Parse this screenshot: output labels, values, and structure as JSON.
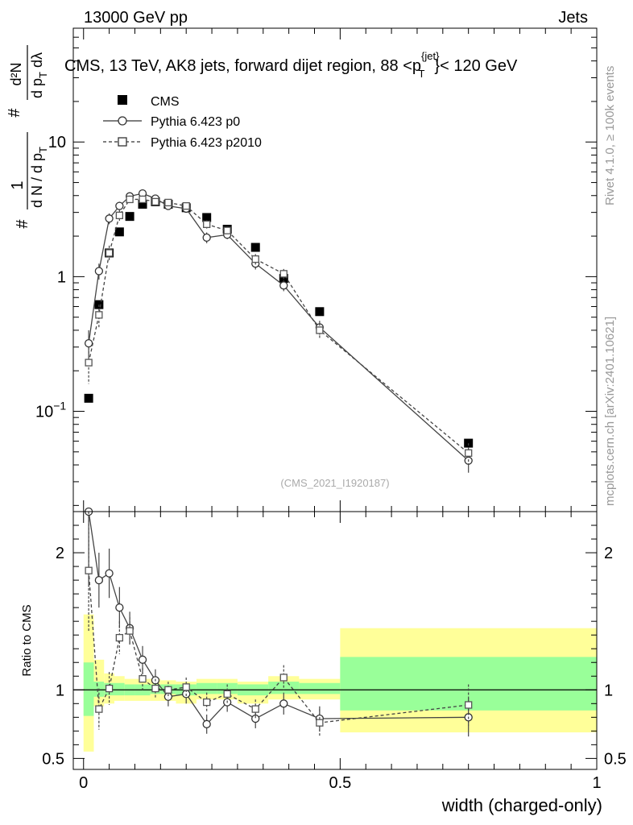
{
  "header": {
    "left": "13000 GeV pp",
    "right": "Jets"
  },
  "side_labels": {
    "rivet": "Rivet 4.1.0, ≥ 100k events",
    "mcplots": "mcplots.cern.ch [arXiv:2401.10621]"
  },
  "chart_data": [
    {
      "type": "scatter",
      "title": "CMS, 13 TeV, AK8 jets, forward dijet region, 88 <p",
      "title_sup": "{jet}",
      "title_sub": "T",
      "title_end": "}< 120 GeV",
      "analysis_id": "(CMS_2021_I1920187)",
      "yscale": "log",
      "ylim": [
        0.018,
        70
      ],
      "xlim": [
        -0.02,
        1.0
      ],
      "ylabel": {
        "frac_num": "1",
        "frac_den": "d N / d p",
        "den_sub": "T",
        "hash": "#",
        "frac2_num": "d²N",
        "frac2_den": "d p",
        "frac2_den_sub": "T",
        "frac2_den_tail": " dλ"
      },
      "yticks": [
        {
          "value": 0.1,
          "base": "10",
          "exp": "−1"
        },
        {
          "value": 1,
          "label": "1"
        },
        {
          "value": 10,
          "label": "10"
        }
      ],
      "legend_position": "top-left",
      "legend": [
        {
          "name": "CMS",
          "marker": "filled-square"
        },
        {
          "name": "Pythia 6.423 p0",
          "marker": "open-circle",
          "line": "solid"
        },
        {
          "name": "Pythia 6.423 p2010",
          "marker": "open-square",
          "line": "dashed"
        }
      ],
      "series": [
        {
          "name": "CMS",
          "x": [
            0.01,
            0.03,
            0.05,
            0.07,
            0.09,
            0.115,
            0.14,
            0.165,
            0.2,
            0.24,
            0.28,
            0.335,
            0.39,
            0.46,
            0.75
          ],
          "y": [
            0.125,
            0.62,
            1.5,
            2.15,
            2.8,
            3.45,
            3.6,
            3.45,
            3.25,
            2.75,
            2.25,
            1.65,
            0.97,
            0.55,
            0.058
          ]
        },
        {
          "name": "Pythia 6.423 p0",
          "x": [
            0.01,
            0.03,
            0.05,
            0.07,
            0.09,
            0.115,
            0.14,
            0.165,
            0.2,
            0.24,
            0.28,
            0.335,
            0.39,
            0.46,
            0.75
          ],
          "y": [
            0.32,
            1.1,
            2.7,
            3.35,
            3.95,
            4.15,
            3.8,
            3.35,
            3.2,
            1.95,
            2.05,
            1.25,
            0.86,
            0.42,
            0.043
          ],
          "err": [
            0.08,
            0.15,
            0.25,
            0.25,
            0.25,
            0.25,
            0.2,
            0.2,
            0.2,
            0.18,
            0.15,
            0.12,
            0.08,
            0.05,
            0.008
          ]
        },
        {
          "name": "Pythia 6.423 p2010",
          "x": [
            0.01,
            0.03,
            0.05,
            0.07,
            0.09,
            0.115,
            0.14,
            0.165,
            0.2,
            0.24,
            0.28,
            0.335,
            0.39,
            0.46,
            0.75
          ],
          "y": [
            0.23,
            0.52,
            1.5,
            2.85,
            3.75,
            3.75,
            3.6,
            3.55,
            3.35,
            2.45,
            2.2,
            1.35,
            1.05,
            0.4,
            0.049
          ],
          "err": [
            0.07,
            0.1,
            0.2,
            0.25,
            0.25,
            0.25,
            0.2,
            0.2,
            0.2,
            0.18,
            0.15,
            0.12,
            0.09,
            0.05,
            0.009
          ]
        }
      ]
    },
    {
      "type": "scatter",
      "ylabel": "Ratio to CMS",
      "ylim": [
        0.42,
        2.3
      ],
      "xlim": [
        -0.02,
        1.0
      ],
      "xlabel": "width (charged-only)",
      "xticks": [
        {
          "value": 0,
          "label": "0"
        },
        {
          "value": 0.5,
          "label": "0.5"
        },
        {
          "value": 1,
          "label": "1"
        }
      ],
      "yticks": [
        {
          "value": 0.5,
          "label": "0.5"
        },
        {
          "value": 1,
          "label": "1"
        },
        {
          "value": 2,
          "label": "2"
        }
      ],
      "reference_line": 1,
      "bands": {
        "bin_edges": [
          0,
          0.02,
          0.04,
          0.06,
          0.08,
          0.1,
          0.13,
          0.15,
          0.18,
          0.22,
          0.26,
          0.3,
          0.36,
          0.42,
          0.5,
          1.0
        ],
        "yellow_lo": [
          0.55,
          0.88,
          0.9,
          0.92,
          0.92,
          0.92,
          0.92,
          0.92,
          0.9,
          0.93,
          0.93,
          0.9,
          0.93,
          0.93,
          0.69
        ],
        "yellow_hi": [
          1.55,
          1.22,
          1.12,
          1.1,
          1.08,
          1.08,
          1.08,
          1.07,
          1.06,
          1.08,
          1.08,
          1.06,
          1.1,
          1.08,
          1.45
        ],
        "green_lo": [
          0.81,
          0.95,
          0.96,
          0.96,
          0.96,
          0.96,
          0.97,
          0.97,
          0.96,
          0.97,
          0.97,
          0.96,
          0.97,
          0.97,
          0.85
        ],
        "green_hi": [
          1.2,
          1.06,
          1.05,
          1.05,
          1.04,
          1.04,
          1.04,
          1.04,
          1.04,
          1.05,
          1.05,
          1.04,
          1.06,
          1.05,
          1.24
        ]
      },
      "series": [
        {
          "name": "Pythia 6.423 p0",
          "x": [
            0.01,
            0.03,
            0.05,
            0.07,
            0.09,
            0.115,
            0.14,
            0.165,
            0.2,
            0.24,
            0.28,
            0.335,
            0.39,
            0.46,
            0.75
          ],
          "y": [
            2.3,
            1.8,
            1.85,
            1.6,
            1.45,
            1.22,
            1.07,
            0.95,
            0.97,
            0.75,
            0.91,
            0.79,
            0.9,
            0.79,
            0.8
          ],
          "err": [
            0.55,
            0.2,
            0.18,
            0.15,
            0.12,
            0.1,
            0.08,
            0.07,
            0.07,
            0.07,
            0.07,
            0.07,
            0.08,
            0.09,
            0.14
          ]
        },
        {
          "name": "Pythia 6.423 p2010",
          "x": [
            0.01,
            0.03,
            0.05,
            0.07,
            0.09,
            0.115,
            0.14,
            0.165,
            0.2,
            0.24,
            0.28,
            0.335,
            0.39,
            0.46,
            0.75
          ],
          "y": [
            1.87,
            0.86,
            1.01,
            1.38,
            1.43,
            1.08,
            1.01,
            1.0,
            1.02,
            0.91,
            0.97,
            0.86,
            1.09,
            0.76,
            0.89
          ],
          "err": [
            0.45,
            0.15,
            0.12,
            0.12,
            0.1,
            0.08,
            0.07,
            0.06,
            0.07,
            0.07,
            0.07,
            0.07,
            0.09,
            0.1,
            0.15
          ]
        }
      ]
    }
  ]
}
